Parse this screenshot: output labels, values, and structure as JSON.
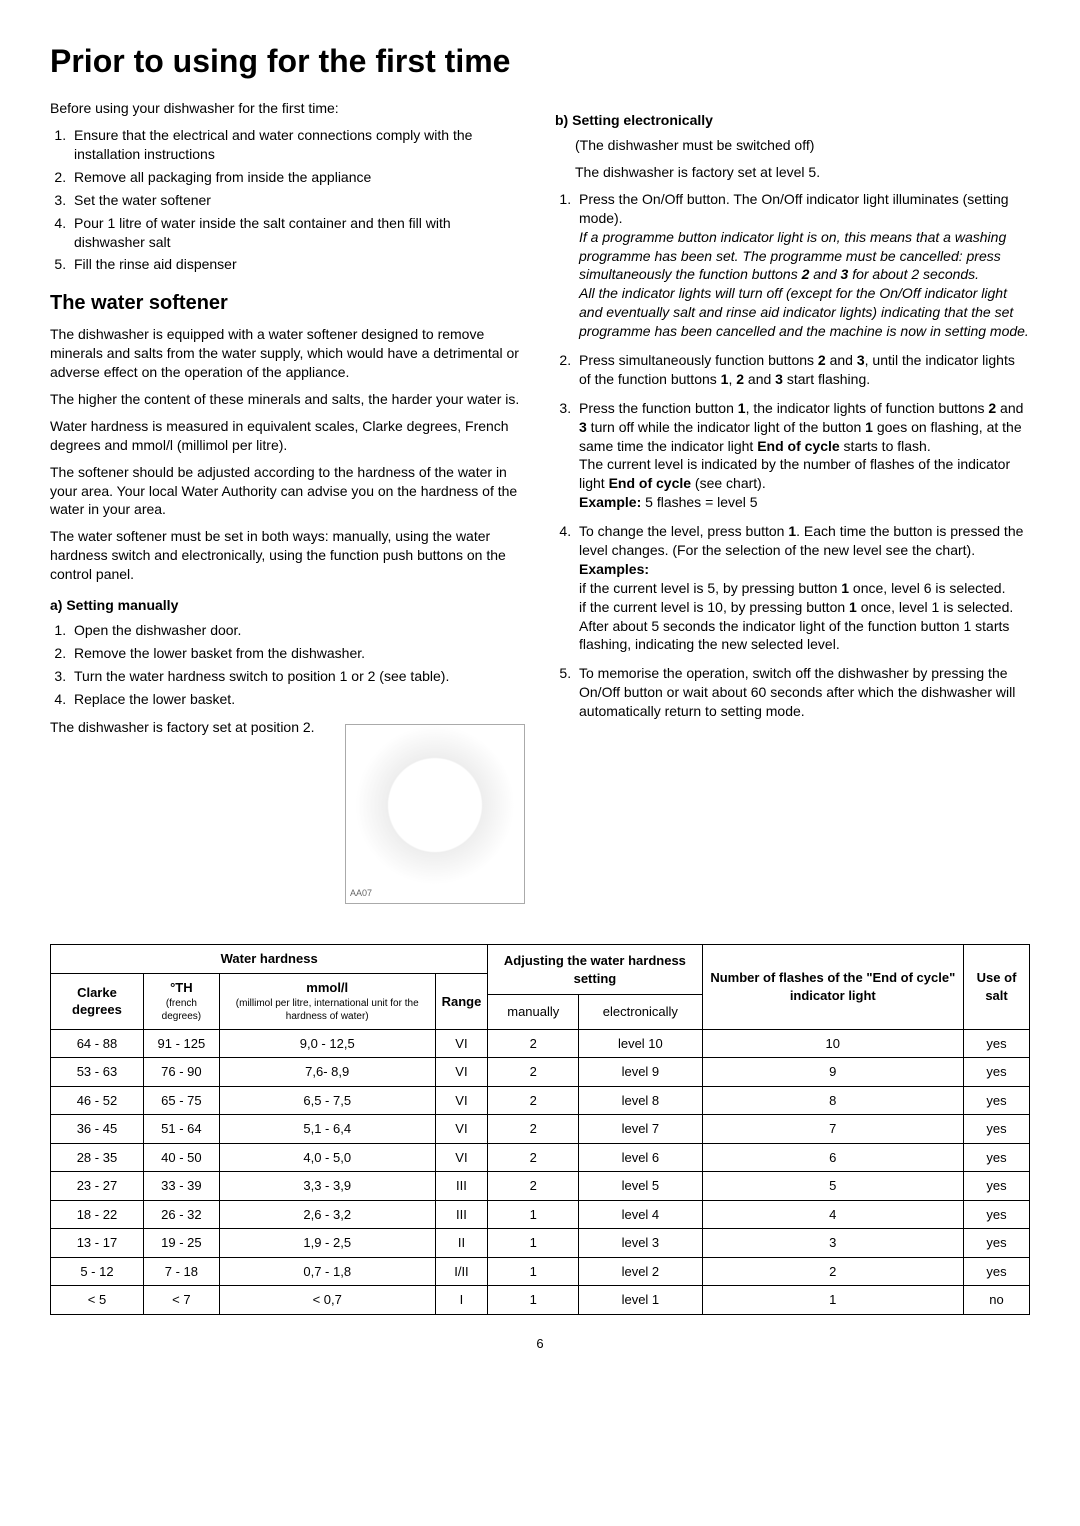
{
  "title": "Prior to using for the first time",
  "intro": "Before using your dishwasher for the first time:",
  "intro_list": [
    "Ensure that the electrical and water connections comply with the installation instructions",
    "Remove all packaging from inside the appliance",
    "Set the water softener",
    "Pour 1 litre of water inside the salt container and then fill with dishwasher salt",
    "Fill the rinse aid dispenser"
  ],
  "softener": {
    "heading": "The water softener",
    "p1": "The dishwasher is equipped with a water softener designed to remove minerals and salts from the water supply, which would have a detrimental or adverse effect on the operation of the appliance.",
    "p2": "The higher the content of these minerals and salts, the harder your water is.",
    "p3": "Water hardness is measured in equivalent scales, Clarke degrees, French degrees and mmol/l (millimol per litre).",
    "p4": "The softener should be adjusted according to the hardness of the water in your area. Your local Water Authority can advise you on the hardness of the water in your area.",
    "p5": "The water softener must be set in both ways: manually, using the water hardness switch and electronically, using the function push buttons on the control panel."
  },
  "manual": {
    "heading": "a) Setting manually",
    "list": [
      "Open the dishwasher door.",
      "Remove the lower basket from the dishwasher.",
      "Turn the water hardness switch to position 1 or 2 (see table).",
      "Replace the lower basket."
    ],
    "note": "The dishwasher is factory set at position 2.",
    "img_label": "AA07"
  },
  "electronic": {
    "heading": "b) Setting electronically",
    "sub1": "(The dishwasher must be switched off)",
    "sub2": "The dishwasher is factory set at level 5.",
    "step1a": "Press the On/Off button. The On/Off indicator light illuminates (setting mode).",
    "step1b": "If a programme button indicator light is on, this means that a washing programme has been set. The programme must be cancelled: press simultaneously the function buttons ",
    "step1b2": " and ",
    "step1b3": " for about 2 seconds.",
    "step1c": "All the indicator lights will turn off (except for the On/Off indicator light and eventually salt and rinse aid indicator lights) indicating that the set programme has been cancelled and the machine is now in setting mode.",
    "step2a": "Press simultaneously function buttons ",
    "step2b": " and ",
    "step2c": ", until the indicator lights of the function buttons ",
    "step2d": ", ",
    "step2e": " and ",
    "step2f": " start flashing.",
    "step3a": "Press the function button ",
    "step3b": ", the indicator lights of function buttons ",
    "step3c": " and ",
    "step3d": " turn off while the indicator light of the button ",
    "step3e": " goes on flashing, at the same time the indicator light ",
    "step3f": " starts to flash.",
    "step3g": "The current level is indicated by the number of flashes of the indicator light ",
    "step3h": " (see chart).",
    "step3i": " 5 flashes = level 5",
    "step4a": "To change the level, press button ",
    "step4b": ". Each time the button is pressed the level changes. (For the selection of the new level see the chart).",
    "examples_label": "Examples:",
    "ex1a": "if the current level is 5, by pressing button ",
    "ex1b": " once, level 6 is selected.",
    "ex2a": "if the current level is 10, by pressing button ",
    "ex2b": " once, level 1 is selected.",
    "ex3": "After about 5 seconds the indicator light of the function button 1 starts flashing, indicating the new selected level.",
    "step5": "To memorise the operation, switch off the dishwasher by pressing the On/Off button or wait about 60 seconds after which the dishwasher will automatically return to setting mode.",
    "b1": "1",
    "b2": "2",
    "b3": "3",
    "eoc": "End of cycle",
    "example_label": "Example:"
  },
  "table": {
    "headers": {
      "hardness": "Water hardness",
      "clarke": "Clarke degrees",
      "th": "°TH",
      "th_sub": "(french degrees)",
      "mmol": "mmol/l",
      "mmol_sub": "(millimol per litre, international unit for the hardness of water)",
      "range": "Range",
      "adjust": "Adjusting the water hardness setting",
      "manually": "manually",
      "electronically": "electronically",
      "flashes": "Number of flashes of the \"End of cycle\" indicator light",
      "salt": "Use of salt"
    },
    "rows": [
      {
        "clarke": "64 - 88",
        "th": "91 - 125",
        "mmol": "9,0 - 12,5",
        "range": "VI",
        "man": "2",
        "elec": "level 10",
        "flash": "10",
        "salt": "yes"
      },
      {
        "clarke": "53 - 63",
        "th": "76 - 90",
        "mmol": "7,6- 8,9",
        "range": "VI",
        "man": "2",
        "elec": "level 9",
        "flash": "9",
        "salt": "yes"
      },
      {
        "clarke": "46 - 52",
        "th": "65 - 75",
        "mmol": "6,5 - 7,5",
        "range": "VI",
        "man": "2",
        "elec": "level 8",
        "flash": "8",
        "salt": "yes"
      },
      {
        "clarke": "36 - 45",
        "th": "51 - 64",
        "mmol": "5,1 - 6,4",
        "range": "VI",
        "man": "2",
        "elec": "level 7",
        "flash": "7",
        "salt": "yes"
      },
      {
        "clarke": "28 - 35",
        "th": "40 - 50",
        "mmol": "4,0 - 5,0",
        "range": "VI",
        "man": "2",
        "elec": "level 6",
        "flash": "6",
        "salt": "yes"
      },
      {
        "clarke": "23 - 27",
        "th": "33 - 39",
        "mmol": "3,3 - 3,9",
        "range": "III",
        "man": "2",
        "elec": "level 5",
        "flash": "5",
        "salt": "yes"
      },
      {
        "clarke": "18 - 22",
        "th": "26 - 32",
        "mmol": "2,6 - 3,2",
        "range": "III",
        "man": "1",
        "elec": "level 4",
        "flash": "4",
        "salt": "yes"
      },
      {
        "clarke": "13 - 17",
        "th": "19 - 25",
        "mmol": "1,9 - 2,5",
        "range": "II",
        "man": "1",
        "elec": "level 3",
        "flash": "3",
        "salt": "yes"
      },
      {
        "clarke": "5 - 12",
        "th": "7 - 18",
        "mmol": "0,7 - 1,8",
        "range": "I/II",
        "man": "1",
        "elec": "level 2",
        "flash": "2",
        "salt": "yes"
      },
      {
        "clarke": "< 5",
        "th": "< 7",
        "mmol": "< 0,7",
        "range": "I",
        "man": "1",
        "elec": "level 1",
        "flash": "1",
        "salt": "no"
      }
    ]
  },
  "page_num": "6"
}
